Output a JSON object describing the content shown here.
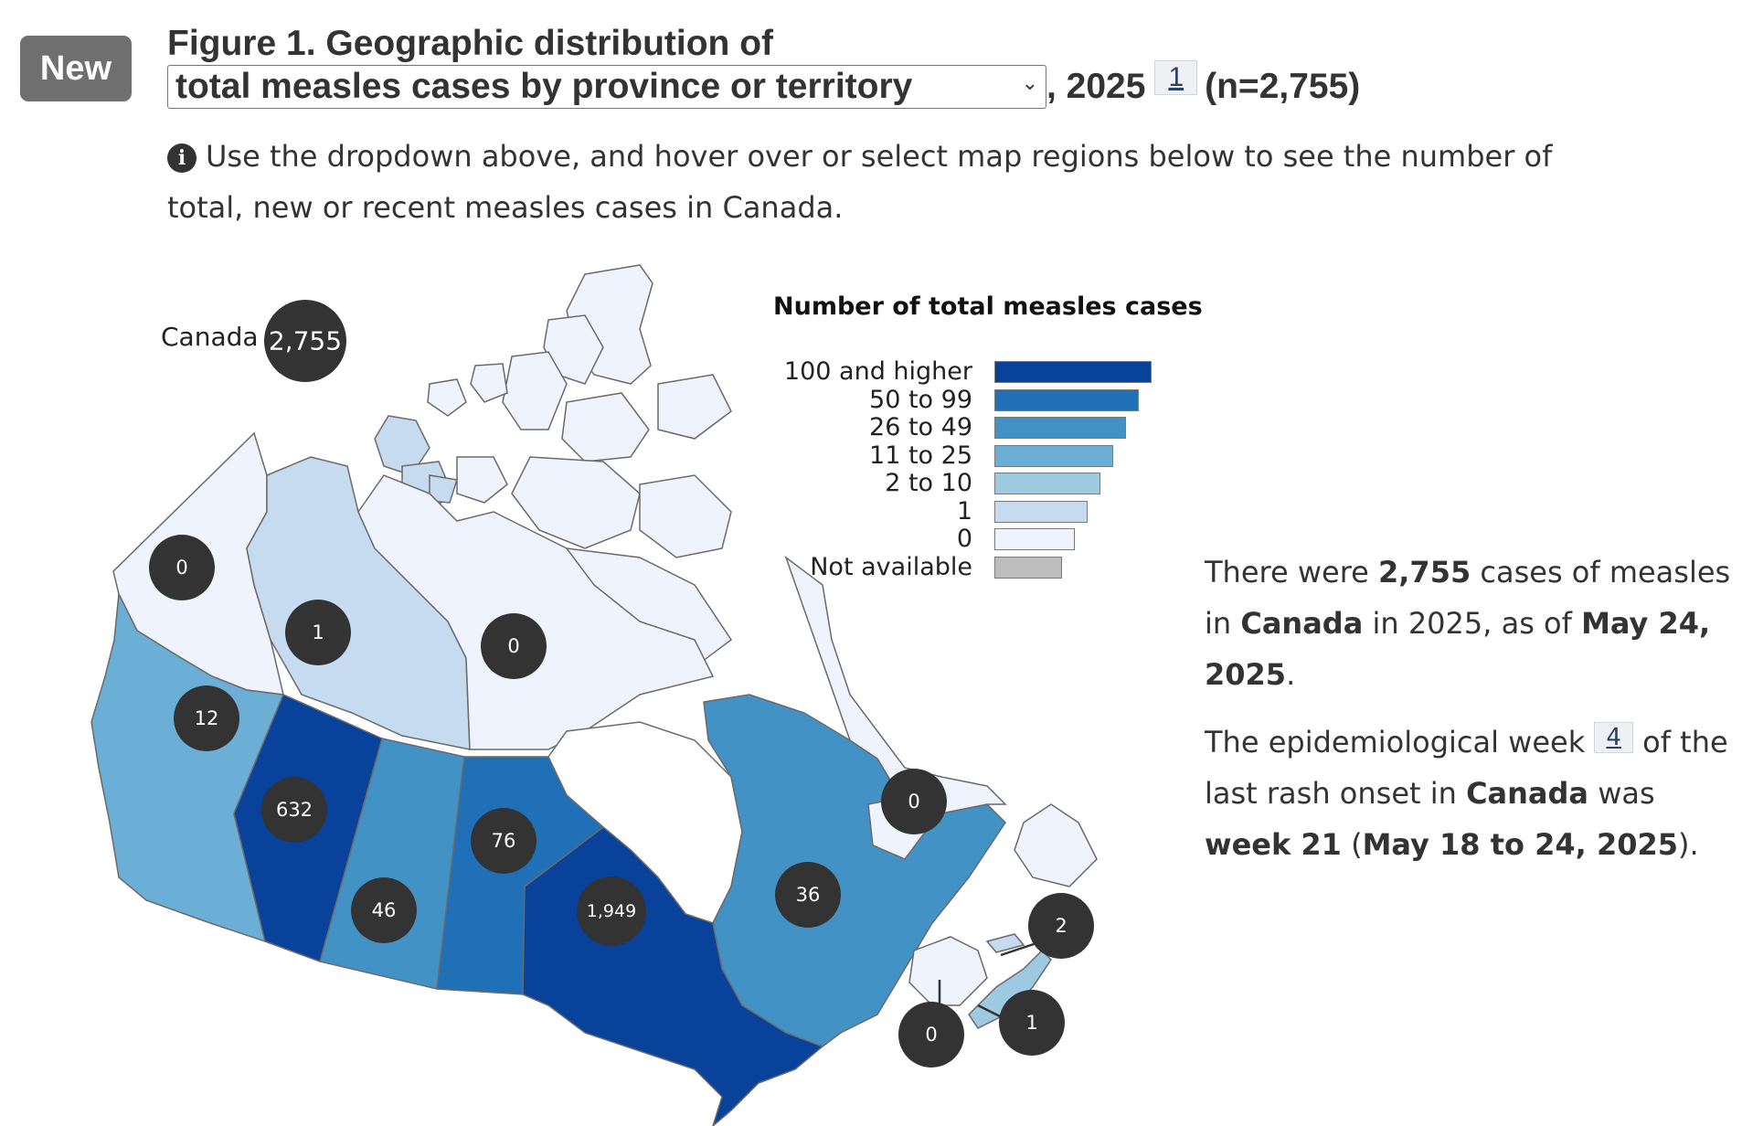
{
  "badge": "New",
  "figure": {
    "title_line1": "Figure 1. Geographic distribution of",
    "dropdown_value": "total measles cases by province or territory",
    "title_year": ", 2025",
    "footnote_1": "1",
    "n_label": "(n=2,755)",
    "info_text": "Use the dropdown above, and hover over or select map regions below to see the number of total, new or recent measles cases in Canada."
  },
  "legend": {
    "title": "Number of total measles cases",
    "items": [
      {
        "label": "100 and higher",
        "color": "#08429b"
      },
      {
        "label": "50 to 99",
        "color": "#2070b8"
      },
      {
        "label": "26 to 49",
        "color": "#4292c6"
      },
      {
        "label": "11 to 25",
        "color": "#6baed6"
      },
      {
        "label": "2 to 10",
        "color": "#9ecae1"
      },
      {
        "label": "1",
        "color": "#c6dbef"
      },
      {
        "label": "0",
        "color": "#eff3fe"
      },
      {
        "label": "Not available",
        "color": "#bdbdbd"
      }
    ]
  },
  "map": {
    "canada_label": "Canada",
    "canada_total": "2,755",
    "regions": [
      {
        "name": "Yukon",
        "value": "0",
        "color": "#eff3fe"
      },
      {
        "name": "Northwest Territories",
        "value": "1",
        "color": "#c6dbef"
      },
      {
        "name": "Nunavut",
        "value": "0",
        "color": "#eff3fe"
      },
      {
        "name": "British Columbia",
        "value": "12",
        "color": "#6baed6"
      },
      {
        "name": "Alberta",
        "value": "632",
        "color": "#08429b"
      },
      {
        "name": "Saskatchewan",
        "value": "46",
        "color": "#4292c6"
      },
      {
        "name": "Manitoba",
        "value": "76",
        "color": "#2070b8"
      },
      {
        "name": "Ontario",
        "value": "1,949",
        "color": "#08429b"
      },
      {
        "name": "Quebec",
        "value": "36",
        "color": "#4292c6"
      },
      {
        "name": "Newfoundland and Labrador",
        "value": "0",
        "color": "#eff3fe"
      },
      {
        "name": "Nova Scotia",
        "value": "2",
        "color": "#9ecae1"
      },
      {
        "name": "Prince Edward Island",
        "value": "1",
        "color": "#c6dbef"
      },
      {
        "name": "New Brunswick",
        "value": "0",
        "color": "#eff3fe"
      }
    ]
  },
  "summary": {
    "p1_pre": "There were ",
    "p1_count": "2,755",
    "p1_mid": " cases of measles in ",
    "p1_country": "Canada",
    "p1_mid2": " in 2025, as of ",
    "p1_date": "May 24, 2025",
    "p1_end": ".",
    "p2_pre": "The epidemiological week ",
    "p2_footnote": "4",
    "p2_mid": " of the last rash onset in ",
    "p2_country": "Canada",
    "p2_mid2": " was ",
    "p2_week": "week 21",
    "p2_open": " (",
    "p2_range": "May 18 to 24, 2025",
    "p2_close": ")."
  }
}
